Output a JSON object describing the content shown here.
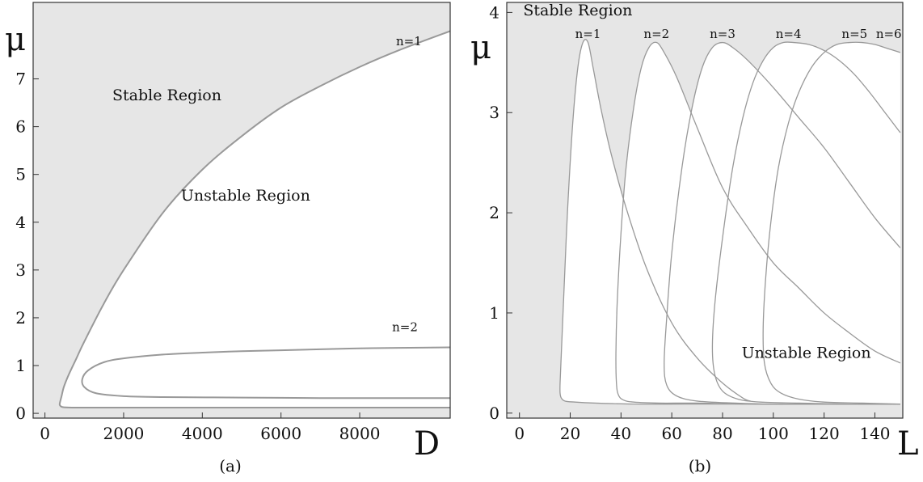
{
  "chart_data": [
    {
      "type": "line",
      "caption": "(a)",
      "xlabel": "D",
      "ylabel": "μ",
      "xlim": [
        -300,
        10300
      ],
      "ylim": [
        -0.1,
        8.6
      ],
      "xticks": [
        0,
        2000,
        4000,
        6000,
        8000
      ],
      "xtick_labels": [
        "0",
        "2000",
        "4000",
        "6000",
        "8000"
      ],
      "yticks": [
        0,
        1,
        2,
        3,
        4,
        5,
        6,
        7
      ],
      "ytick_labels": [
        "0",
        "1",
        "2",
        "3",
        "4",
        "5",
        "6",
        "7"
      ],
      "background_color": "#e6e6e6",
      "inside_color": "#ffffff",
      "line_color": "#999999",
      "annotations": [
        {
          "text": "Stable Region",
          "x": 3100,
          "y": 6.55
        },
        {
          "text": "Unstable Region",
          "x": 5100,
          "y": 4.45
        },
        {
          "text": "n=1",
          "x": 9250,
          "y": 7.7
        },
        {
          "text": "n=2",
          "x": 9150,
          "y": 1.72
        }
      ],
      "series": [
        {
          "label": "n=1",
          "x": [
            10300,
            9000,
            8000,
            7000,
            6000,
            5000,
            4000,
            3000,
            2000,
            1500,
            1000,
            800,
            600,
            480,
            420,
            380,
            380,
            450,
            700,
            1500,
            3000,
            5000,
            7000,
            9000,
            10300
          ],
          "y": [
            8.0,
            7.6,
            7.25,
            6.85,
            6.4,
            5.8,
            5.1,
            4.2,
            3.0,
            2.3,
            1.5,
            1.15,
            0.8,
            0.55,
            0.35,
            0.22,
            0.17,
            0.13,
            0.12,
            0.12,
            0.12,
            0.12,
            0.12,
            0.12,
            0.12
          ]
        },
        {
          "label": "n=2",
          "x": [
            10300,
            9000,
            8000,
            7000,
            6000,
            5000,
            4000,
            3000,
            2000,
            1500,
            1100,
            950,
            1000,
            1300,
            2000,
            3000,
            5000,
            7000,
            9000,
            10300
          ],
          "y": [
            1.38,
            1.37,
            1.36,
            1.34,
            1.32,
            1.3,
            1.27,
            1.23,
            1.15,
            1.07,
            0.9,
            0.72,
            0.55,
            0.42,
            0.36,
            0.34,
            0.33,
            0.32,
            0.32,
            0.32
          ]
        }
      ]
    },
    {
      "type": "line",
      "caption": "(b)",
      "xlabel": "L",
      "ylabel": "μ",
      "xlim": [
        -5,
        151
      ],
      "ylim": [
        -0.05,
        4.1
      ],
      "xticks": [
        0,
        20,
        40,
        60,
        80,
        100,
        120,
        140
      ],
      "xtick_labels": [
        "0",
        "20",
        "40",
        "60",
        "80",
        "100",
        "120",
        "140"
      ],
      "yticks": [
        0,
        1,
        2,
        3,
        4
      ],
      "ytick_labels": [
        "0",
        "1",
        "2",
        "3",
        "4"
      ],
      "background_color": "#e6e6e6",
      "inside_color": "#ffffff",
      "line_color": "#999999",
      "annotations": [
        {
          "text": "Stable Region",
          "x": 1.5,
          "y": 3.97
        },
        {
          "text": "Unstable Region",
          "x": 113,
          "y": 0.55
        }
      ],
      "series": [
        {
          "label": "n=1",
          "x": [
            91,
            88,
            80,
            70,
            60,
            50,
            42,
            36,
            32,
            29,
            27,
            25,
            23,
            21,
            19,
            17.5,
            16.5,
            16,
            16,
            16.5,
            18,
            22,
            30,
            45,
            65,
            85,
            105,
            125,
            150
          ],
          "y": [
            0.12,
            0.15,
            0.3,
            0.55,
            0.9,
            1.45,
            2.05,
            2.6,
            3.05,
            3.45,
            3.7,
            3.7,
            3.45,
            2.9,
            2.05,
            1.2,
            0.6,
            0.3,
            0.2,
            0.15,
            0.12,
            0.11,
            0.1,
            0.09,
            0.09,
            0.09,
            0.09,
            0.09,
            0.09
          ]
        },
        {
          "label": "n=2",
          "x": [
            150,
            140,
            130,
            120,
            110,
            100,
            90,
            80,
            70,
            62,
            57,
            54,
            51,
            48,
            45,
            42,
            40,
            38.5,
            38,
            38.2,
            39,
            41,
            45,
            55,
            70,
            90,
            110,
            130,
            150
          ],
          "y": [
            0.5,
            0.62,
            0.8,
            1.0,
            1.25,
            1.5,
            1.85,
            2.25,
            2.85,
            3.35,
            3.6,
            3.7,
            3.65,
            3.45,
            3.05,
            2.45,
            1.8,
            1.1,
            0.6,
            0.3,
            0.18,
            0.13,
            0.11,
            0.1,
            0.1,
            0.09,
            0.09,
            0.09,
            0.09
          ]
        },
        {
          "label": "n=3",
          "x": [
            150,
            140,
            130,
            120,
            110,
            100,
            90,
            84,
            80,
            76,
            72,
            68,
            64,
            60,
            58,
            57,
            58,
            62,
            70,
            85,
            100,
            120,
            150
          ],
          "y": [
            1.65,
            1.95,
            2.3,
            2.65,
            2.95,
            3.25,
            3.52,
            3.65,
            3.7,
            3.65,
            3.45,
            3.05,
            2.45,
            1.6,
            0.95,
            0.5,
            0.28,
            0.17,
            0.12,
            0.1,
            0.09,
            0.09,
            0.09
          ]
        },
        {
          "label": "n=4",
          "x": [
            150,
            144,
            138,
            132,
            126,
            120,
            114,
            108,
            104,
            100,
            96,
            92,
            88,
            84,
            80,
            77,
            76,
            77,
            80,
            86,
            95,
            110,
            130,
            150
          ],
          "y": [
            2.8,
            3.0,
            3.2,
            3.38,
            3.52,
            3.62,
            3.68,
            3.7,
            3.7,
            3.65,
            3.52,
            3.3,
            2.95,
            2.45,
            1.75,
            1.1,
            0.65,
            0.38,
            0.22,
            0.14,
            0.11,
            0.1,
            0.09,
            0.09
          ]
        },
        {
          "label": "n=5",
          "x": [
            150,
            145,
            140,
            135,
            130,
            125,
            120,
            115,
            110,
            106,
            102,
            99,
            97,
            96,
            96.5,
            99,
            103,
            110,
            120,
            135,
            150
          ],
          "y": [
            3.6,
            3.64,
            3.68,
            3.7,
            3.7,
            3.68,
            3.6,
            3.45,
            3.2,
            2.9,
            2.45,
            1.9,
            1.35,
            0.85,
            0.5,
            0.3,
            0.2,
            0.14,
            0.11,
            0.1,
            0.09
          ]
        }
      ],
      "top_labels": [
        {
          "text": "n=1",
          "x": 27
        },
        {
          "text": "n=2",
          "x": 54
        },
        {
          "text": "n=3",
          "x": 80
        },
        {
          "text": "n=4",
          "x": 106
        },
        {
          "text": "n=5",
          "x": 132
        },
        {
          "text": "n=6",
          "x": 145.5
        }
      ]
    }
  ]
}
